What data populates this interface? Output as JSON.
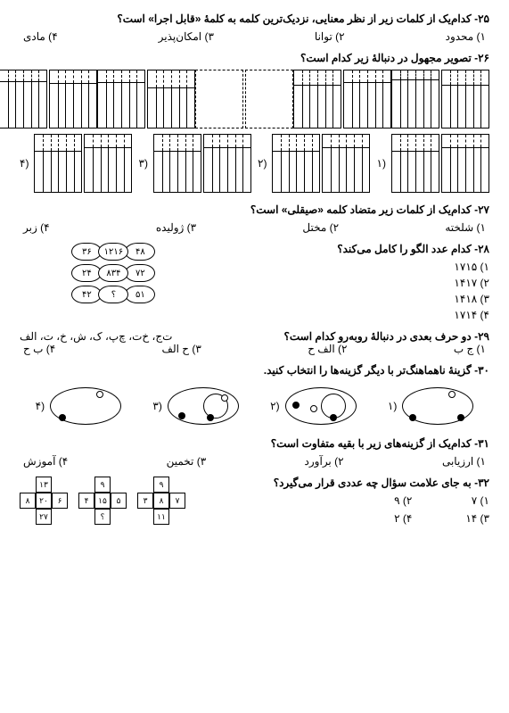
{
  "q25": {
    "text": "۲۵- کدام‌یک از کلمات زیر از نظر معنایی، نزدیک‌ترین کلمه به کلمهٔ «قابل اجرا» است؟",
    "opts": [
      "۱) محدود",
      "۲) توانا",
      "۳) امکان‌پذیر",
      "۴) مادی"
    ]
  },
  "q26": {
    "text": "۲۶- تصویر مجهول در دنبالهٔ زیر کدام است؟",
    "ans_labels": [
      "(۱",
      "(۲",
      "(۳",
      "(۴"
    ]
  },
  "q27": {
    "text": "۲۷- کدام‌یک از کلمات زیر متضاد کلمه «صیقلی» است؟",
    "opts": [
      "۱) شلخته",
      "۲) مختل",
      "۳) ژولیده",
      "۴) زبر"
    ]
  },
  "q28": {
    "text": "۲۸- کدام عدد الگو را کامل می‌کند؟",
    "opts": [
      "۱) ۱۷۱۵",
      "۲) ۱۴۱۷",
      "۳) ۱۴۱۸",
      "۴) ۱۷۱۴"
    ],
    "ovals": [
      [
        "۴۸",
        "۱۲۱۶",
        "۳۶"
      ],
      [
        "۷۲",
        "۸۳۴",
        "۲۴"
      ],
      [
        "۵۱",
        "؟",
        "۴۲"
      ]
    ]
  },
  "q29": {
    "text": "۲۹- دو حرف بعدی در دنبالهٔ روبه‌رو کدام است؟",
    "seq": "ت‌ج، خ‌ت، چ‌پ، ک، ش، خ، ت، الف",
    "opts": [
      "۱) ج ب",
      "۲) الف ح",
      "۳) ح الف",
      "۴) ب ح"
    ]
  },
  "q30": {
    "text": "۳۰- گزینهٔ ناهماهنگ‌تر با دیگر گزینه‌ها را انتخاب کنید.",
    "labels": [
      "(۱",
      "(۲",
      "(۳",
      "(۴"
    ]
  },
  "q31": {
    "text": "۳۱- کدام‌یک از گزینه‌های زیر با بقیه متفاوت است؟",
    "opts": [
      "۱) ارزیابی",
      "۲) برآورد",
      "۳) تخمین",
      "۴) آموزش"
    ]
  },
  "q32": {
    "text": "۳۲- به جای علامت سؤال چه عددی قرار می‌گیرد؟",
    "opts": [
      "۱) ۷",
      "۲) ۹",
      "۳) ۱۴",
      "۴) ۲"
    ],
    "nets": [
      [
        "",
        "۱۳",
        "",
        "۸",
        "۲۰",
        "۶",
        "",
        "۲۷",
        ""
      ],
      [
        "",
        "۹",
        "",
        "۴",
        "۱۵",
        "۵",
        "",
        "؟",
        ""
      ],
      [
        "",
        "۹",
        "",
        "۳",
        "۸",
        "۷",
        "",
        "۱۱",
        ""
      ]
    ]
  }
}
